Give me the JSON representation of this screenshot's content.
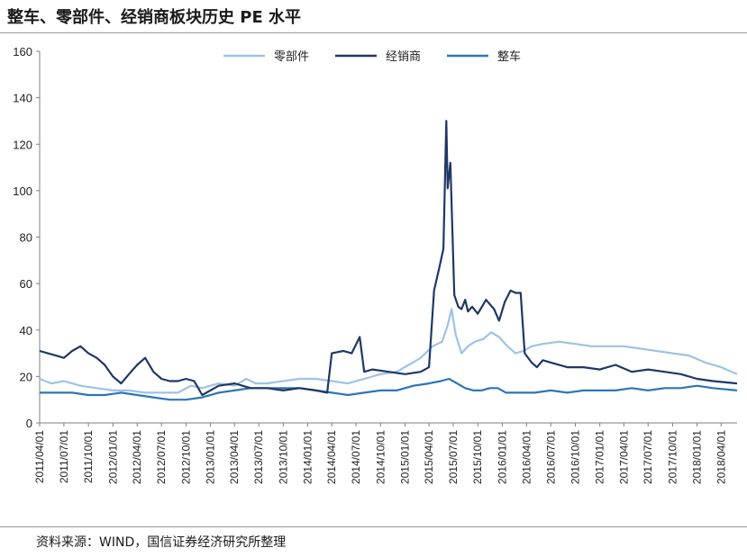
{
  "header": {
    "title": "整车、零部件、经销商板块历史 PE 水平"
  },
  "footer": {
    "source": "资料来源：WIND，国信证券经济研究所整理"
  },
  "colors": {
    "parts": "#9DC3E6",
    "dealer": "#1F3864",
    "vehicle": "#2E75B6"
  },
  "chart_data": {
    "type": "line",
    "title": "整车、零部件、经销商板块历史 PE 水平",
    "xlabel": "",
    "ylabel": "",
    "ylim": [
      0,
      160
    ],
    "yticks": [
      0,
      20,
      40,
      60,
      80,
      100,
      120,
      140,
      160
    ],
    "xlim": [
      "2011/04/01",
      "2018/05/31"
    ],
    "xticks": [
      "2011/04/01",
      "2011/07/01",
      "2011/10/01",
      "2012/01/01",
      "2012/04/01",
      "2012/07/01",
      "2012/10/01",
      "2013/01/01",
      "2013/04/01",
      "2013/07/01",
      "2013/10/01",
      "2014/01/01",
      "2014/04/01",
      "2014/07/01",
      "2014/10/01",
      "2015/01/01",
      "2015/04/01",
      "2015/07/01",
      "2015/10/01",
      "2016/01/01",
      "2016/04/01",
      "2016/07/01",
      "2016/10/01",
      "2017/01/01",
      "2017/04/01",
      "2017/07/01",
      "2017/10/01",
      "2018/01/01",
      "2018/04/01"
    ],
    "legend_position": "top-center",
    "grid": false,
    "series": [
      {
        "name": "零部件",
        "color": "#9DC3E6",
        "x": [
          "2011/04/01",
          "2011/05/15",
          "2011/07/01",
          "2011/09/01",
          "2011/11/01",
          "2012/01/01",
          "2012/03/01",
          "2012/05/01",
          "2012/07/01",
          "2012/09/01",
          "2012/10/20",
          "2012/12/01",
          "2013/02/01",
          "2013/04/01",
          "2013/05/15",
          "2013/06/20",
          "2013/08/01",
          "2013/10/01",
          "2013/12/01",
          "2014/02/01",
          "2014/04/01",
          "2014/06/01",
          "2014/08/01",
          "2014/10/01",
          "2014/12/01",
          "2015/01/15",
          "2015/03/01",
          "2015/04/15",
          "2015/05/20",
          "2015/06/10",
          "2015/06/25",
          "2015/07/10",
          "2015/08/01",
          "2015/08/25",
          "2015/09/20",
          "2015/10/20",
          "2015/11/20",
          "2015/12/20",
          "2016/01/20",
          "2016/02/20",
          "2016/03/20",
          "2016/04/20",
          "2016/06/01",
          "2016/08/01",
          "2016/10/01",
          "2016/12/01",
          "2017/02/01",
          "2017/04/01",
          "2017/06/01",
          "2017/08/01",
          "2017/10/01",
          "2017/12/01",
          "2018/02/01",
          "2018/04/01",
          "2018/05/31"
        ],
        "values": [
          19,
          17,
          18,
          16,
          15,
          14,
          14,
          13,
          13,
          13,
          16,
          15,
          17,
          16,
          19,
          17,
          17,
          18,
          19,
          19,
          18,
          17,
          19,
          21,
          22,
          25,
          28,
          33,
          35,
          42,
          49,
          38,
          30,
          33,
          35,
          36,
          39,
          37,
          33,
          30,
          31,
          33,
          34,
          35,
          34,
          33,
          33,
          33,
          32,
          31,
          30,
          29,
          26,
          24,
          21
        ]
      },
      {
        "name": "经销商",
        "color": "#1F3864",
        "x": [
          "2011/04/01",
          "2011/05/01",
          "2011/06/01",
          "2011/07/01",
          "2011/08/01",
          "2011/09/01",
          "2011/10/01",
          "2011/11/01",
          "2011/12/01",
          "2012/01/01",
          "2012/02/01",
          "2012/03/01",
          "2012/04/01",
          "2012/05/01",
          "2012/06/01",
          "2012/07/01",
          "2012/08/01",
          "2012/09/01",
          "2012/10/01",
          "2012/11/01",
          "2012/12/01",
          "2013/02/01",
          "2013/04/01",
          "2013/06/01",
          "2013/08/01",
          "2013/10/01",
          "2013/12/01",
          "2014/02/01",
          "2014/03/15",
          "2014/04/01",
          "2014/05/15",
          "2014/06/15",
          "2014/07/15",
          "2014/08/01",
          "2014/09/01",
          "2014/11/01",
          "2015/01/01",
          "2015/03/01",
          "2015/04/01",
          "2015/04/20",
          "2015/05/10",
          "2015/05/25",
          "2015/06/05",
          "2015/06/10",
          "2015/06/20",
          "2015/07/05",
          "2015/07/20",
          "2015/08/01",
          "2015/08/15",
          "2015/08/25",
          "2015/09/10",
          "2015/10/01",
          "2015/11/01",
          "2015/12/01",
          "2015/12/20",
          "2016/01/10",
          "2016/02/01",
          "2016/02/20",
          "2016/03/10",
          "2016/03/25",
          "2016/04/20",
          "2016/05/10",
          "2016/06/01",
          "2016/07/01",
          "2016/09/01",
          "2016/11/01",
          "2017/01/01",
          "2017/03/01",
          "2017/05/01",
          "2017/07/01",
          "2017/09/01",
          "2017/11/01",
          "2018/01/01",
          "2018/03/01",
          "2018/05/31"
        ],
        "values": [
          31,
          30,
          29,
          28,
          31,
          33,
          30,
          28,
          25,
          20,
          17,
          21,
          25,
          28,
          22,
          19,
          18,
          18,
          19,
          18,
          12,
          16,
          17,
          15,
          15,
          14,
          15,
          14,
          13,
          30,
          31,
          30,
          37,
          22,
          23,
          22,
          21,
          22,
          24,
          57,
          67,
          75,
          130,
          101,
          112,
          55,
          50,
          49,
          53,
          48,
          50,
          47,
          53,
          49,
          44,
          52,
          57,
          56,
          56,
          30,
          26,
          24,
          27,
          26,
          24,
          24,
          23,
          25,
          22,
          23,
          22,
          21,
          19,
          18,
          17
        ]
      },
      {
        "name": "整车",
        "color": "#2E75B6",
        "x": [
          "2011/04/01",
          "2011/06/01",
          "2011/08/01",
          "2011/10/01",
          "2011/12/01",
          "2012/02/01",
          "2012/04/01",
          "2012/06/01",
          "2012/08/01",
          "2012/10/01",
          "2012/12/01",
          "2013/02/01",
          "2013/04/01",
          "2013/06/01",
          "2013/08/01",
          "2013/10/01",
          "2013/12/01",
          "2014/02/01",
          "2014/04/01",
          "2014/06/01",
          "2014/08/01",
          "2014/10/01",
          "2014/12/01",
          "2015/02/01",
          "2015/04/01",
          "2015/05/15",
          "2015/06/15",
          "2015/07/15",
          "2015/08/15",
          "2015/09/15",
          "2015/10/15",
          "2015/11/15",
          "2015/12/15",
          "2016/01/15",
          "2016/03/01",
          "2016/05/01",
          "2016/07/01",
          "2016/09/01",
          "2016/11/01",
          "2017/01/01",
          "2017/03/01",
          "2017/05/01",
          "2017/07/01",
          "2017/09/01",
          "2017/11/01",
          "2018/01/01",
          "2018/03/01",
          "2018/05/31"
        ],
        "values": [
          13,
          13,
          13,
          12,
          12,
          13,
          12,
          11,
          10,
          10,
          11,
          13,
          14,
          15,
          15,
          15,
          15,
          14,
          13,
          12,
          13,
          14,
          14,
          16,
          17,
          18,
          19,
          17,
          15,
          14,
          14,
          15,
          15,
          13,
          13,
          13,
          14,
          13,
          14,
          14,
          14,
          15,
          14,
          15,
          15,
          16,
          15,
          14
        ]
      }
    ]
  }
}
